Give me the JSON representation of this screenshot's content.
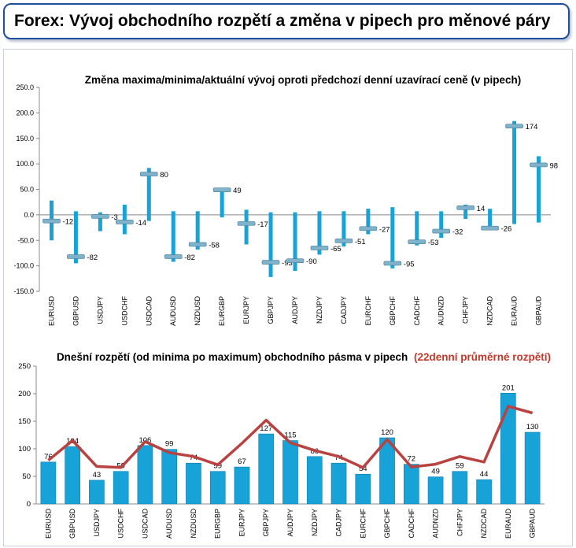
{
  "header": {
    "title": "Forex: Vývoj obchodního rozpětí a změna v pipech pro měnové páry"
  },
  "colors": {
    "bar": "#17a2d8",
    "line": "#b9413f",
    "marker": "#7fb3cc",
    "highlight": "#c0392b"
  },
  "chart_data": [
    {
      "type": "bar",
      "subtype": "floating-range-with-marker",
      "title": "Změna maxima/minima/aktuální vývoj oproti předchozí denní uzavírací ceně (v pipech)",
      "ylim": [
        -150,
        250
      ],
      "yticks": [
        "250.0",
        "200.0",
        "150.0",
        "100.0",
        "50.0",
        "0.0",
        "-50.0",
        "-100.0",
        "-150.0"
      ],
      "ytick_values": [
        250,
        200,
        150,
        100,
        50,
        0,
        -50,
        -100,
        -150
      ],
      "categories": [
        "EURUSD",
        "GBPUSD",
        "USDJPY",
        "USDCHF",
        "USDCAD",
        "AUDUSD",
        "NZDUSD",
        "EURGBP",
        "EURJPY",
        "GBPJPY",
        "AUDJPY",
        "NZDJPY",
        "CADJPY",
        "EURCHF",
        "GBPCHF",
        "CADCHF",
        "AUDNZD",
        "CHFJPY",
        "NZDCAD",
        "EURAUD",
        "GBPAUD"
      ],
      "series": [
        {
          "role": "high",
          "values": [
            28,
            7,
            5,
            20,
            92,
            7,
            7,
            52,
            10,
            5,
            5,
            7,
            7,
            12,
            15,
            7,
            7,
            20,
            12,
            184,
            115
          ]
        },
        {
          "role": "low",
          "values": [
            -50,
            -95,
            -32,
            -38,
            -12,
            -92,
            -68,
            -5,
            -58,
            -122,
            -110,
            -78,
            -62,
            -38,
            -105,
            -60,
            -45,
            -8,
            -28,
            -18,
            -15
          ]
        },
        {
          "role": "current",
          "values": [
            -12,
            -82,
            -3,
            -14,
            80,
            -82,
            -58,
            49,
            -17,
            -93,
            -90,
            -65,
            -51,
            -27,
            -95,
            -53,
            -32,
            14,
            -26,
            174,
            98
          ]
        }
      ],
      "labels": [
        "-12",
        "-82",
        "-3",
        "-14",
        "80",
        "-82",
        "-58",
        "49",
        "-17",
        "-93",
        "-90",
        "-65",
        "-51",
        "-27",
        "-95",
        "-53",
        "-32",
        "14",
        "-26",
        "174",
        "98"
      ]
    },
    {
      "type": "bar",
      "title": "Dnešní rozpětí (od minima po maximum) obchodního pásma v pipech",
      "title_suffix": "(22denní průměrné rozpětí)",
      "ylim": [
        0,
        250
      ],
      "yticks": [
        "250",
        "200",
        "150",
        "100",
        "50",
        "0"
      ],
      "ytick_values": [
        250,
        200,
        150,
        100,
        50,
        0
      ],
      "categories": [
        "EURUSD",
        "GBPUSD",
        "USDJPY",
        "USDCHF",
        "USDCAD",
        "AUDUSD",
        "NZDUSD",
        "EURGBP",
        "EURJPY",
        "GBPJPY",
        "AUDJPY",
        "NZDJPY",
        "CADJPY",
        "EURCHF",
        "GBPCHF",
        "CADCHF",
        "AUDNZD",
        "CHFJPY",
        "NZDCAD",
        "EURAUD",
        "GBPAUD"
      ],
      "series": [
        {
          "type": "bar",
          "values": [
            76,
            104,
            43,
            59,
            106,
            99,
            74,
            59,
            67,
            127,
            115,
            86,
            74,
            54,
            120,
            72,
            49,
            59,
            44,
            201,
            130
          ]
        },
        {
          "type": "line",
          "values": [
            79,
            115,
            68,
            66,
            113,
            93,
            86,
            71,
            110,
            152,
            111,
            97,
            86,
            66,
            117,
            67,
            72,
            86,
            76,
            177,
            165
          ]
        }
      ],
      "labels": [
        "76",
        "104",
        "43",
        "59",
        "106",
        "99",
        "74",
        "59",
        "67",
        "127",
        "115",
        "86",
        "74",
        "54",
        "120",
        "72",
        "49",
        "59",
        "44",
        "201",
        "130"
      ]
    }
  ]
}
